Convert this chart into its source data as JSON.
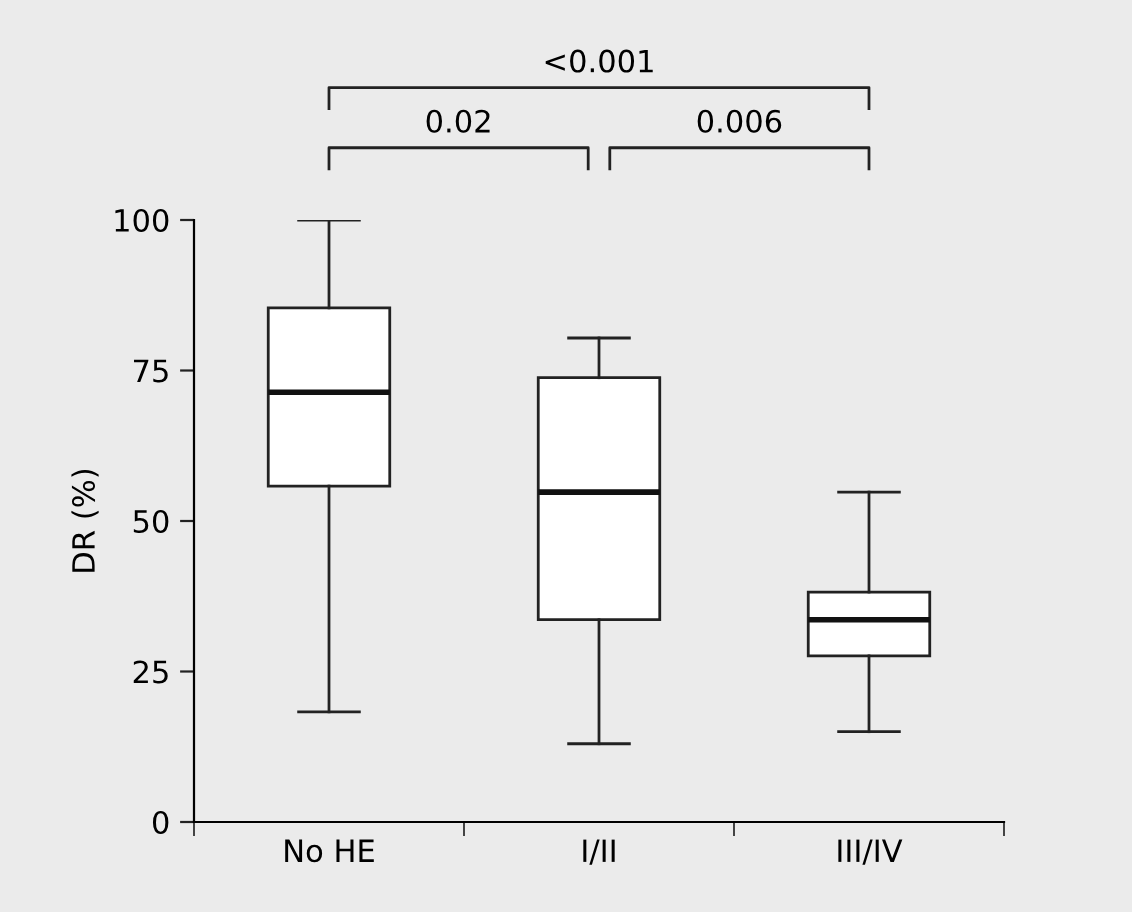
{
  "chart_data": {
    "type": "box",
    "ylabel": "DR (%)",
    "categories": [
      "No HE",
      "I/II",
      "III/IV"
    ],
    "boxes": [
      {
        "low": 18.3,
        "q1": 55.8,
        "median": 71.4,
        "q3": 85.4,
        "high": 100
      },
      {
        "low": 13,
        "q1": 33.6,
        "median": 54.8,
        "q3": 73.8,
        "high": 80.4
      },
      {
        "low": 15,
        "q1": 27.6,
        "median": 33.6,
        "q3": 38.2,
        "high": 54.8
      }
    ],
    "ylim": [
      0,
      100
    ],
    "yticks": [
      0,
      25,
      50,
      75,
      100
    ],
    "grid": false,
    "annotations": [
      "0.02",
      "0.006",
      "<0.001"
    ]
  }
}
